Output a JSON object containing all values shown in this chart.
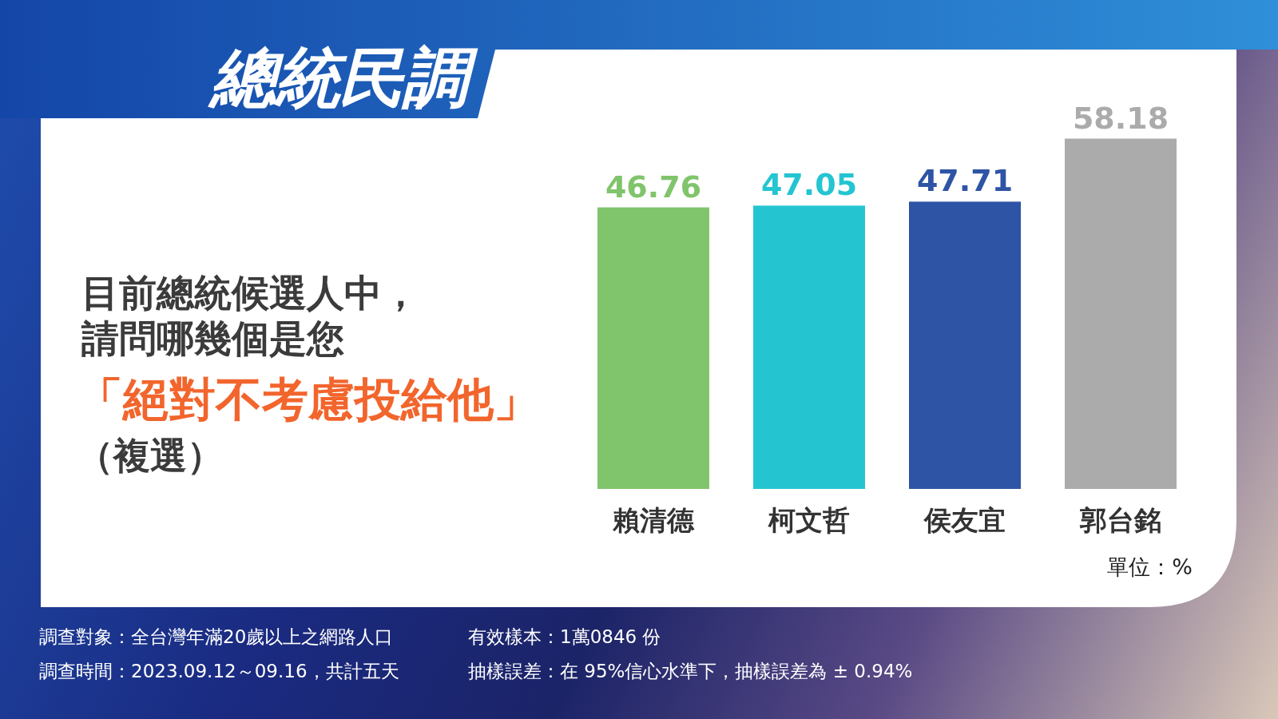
{
  "chart_data": {
    "type": "bar",
    "title": "總統民調",
    "subtitle": "目前總統候選人中，請問哪幾個是您",
    "categories": [
      "賴清德",
      "柯文哲",
      "侯友宜",
      "郭台銘"
    ],
    "values": [
      46.76,
      47.05,
      47.71,
      58.18
    ],
    "colors": [
      "#80c46b",
      "#24c5d1",
      "#2e54a5",
      "#ababab"
    ],
    "data_labels": true,
    "annotations": [
      "「絕對不考慮投給他」",
      "（複選）",
      "單位：%",
      "調查對象：全台灣年滿20歲以上之網路人口",
      "調查時間：2023.09.12～09.16，共計五天",
      "有效樣本：1萬0846 份",
      "抽樣誤差：在 95%信心水準下，抽樣誤差為 ± 0.94%"
    ]
  }
}
